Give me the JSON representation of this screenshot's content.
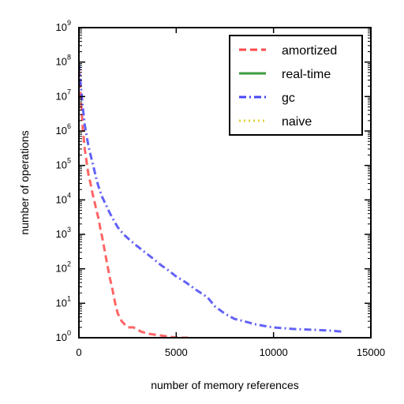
{
  "chart_data": {
    "type": "line",
    "xlabel": "number of memory references",
    "ylabel": "number of operations",
    "xlim": [
      0,
      15000
    ],
    "ylim": [
      1,
      1000000000
    ],
    "yscale": "log",
    "x_ticks": [
      0,
      5000,
      10000,
      15000
    ],
    "x_tick_labels": [
      "0",
      "5000",
      "10000",
      "15000"
    ],
    "y_ticks": [
      1,
      10,
      100,
      1000,
      10000,
      100000,
      1000000,
      10000000,
      100000000,
      1000000000
    ],
    "y_tick_labels": [
      {
        "base": "10",
        "exp": "0"
      },
      {
        "base": "10",
        "exp": "1"
      },
      {
        "base": "10",
        "exp": "2"
      },
      {
        "base": "10",
        "exp": "3"
      },
      {
        "base": "10",
        "exp": "4"
      },
      {
        "base": "10",
        "exp": "5"
      },
      {
        "base": "10",
        "exp": "6"
      },
      {
        "base": "10",
        "exp": "7"
      },
      {
        "base": "10",
        "exp": "8"
      },
      {
        "base": "10",
        "exp": "9"
      }
    ],
    "legend_position": "top-right",
    "series": [
      {
        "name": "amortized",
        "color": "#ff4a4a",
        "dash": "9,5",
        "points": [
          [
            0,
            60000000
          ],
          [
            100,
            8000000
          ],
          [
            200,
            1200000
          ],
          [
            300,
            300000
          ],
          [
            400,
            120000
          ],
          [
            500,
            50000
          ],
          [
            600,
            30000
          ],
          [
            700,
            15000
          ],
          [
            800,
            9000
          ],
          [
            900,
            5000
          ],
          [
            1000,
            3000
          ],
          [
            1100,
            1500
          ],
          [
            1200,
            800
          ],
          [
            1300,
            400
          ],
          [
            1400,
            200
          ],
          [
            1500,
            100
          ],
          [
            1600,
            50
          ],
          [
            1700,
            30
          ],
          [
            1800,
            15
          ],
          [
            1900,
            8
          ],
          [
            2000,
            5
          ],
          [
            2200,
            3
          ],
          [
            2500,
            2
          ],
          [
            2800,
            2
          ],
          [
            3200,
            1.5
          ],
          [
            3600,
            1.3
          ],
          [
            4000,
            1.2
          ],
          [
            4500,
            1.1
          ],
          [
            5000,
            1
          ],
          [
            5600,
            1
          ]
        ]
      },
      {
        "name": "real-time",
        "color": "#3e9c3e",
        "dash": "",
        "points": []
      },
      {
        "name": "gc",
        "color": "#4646f5",
        "dash": "9,4,2,4",
        "points": [
          [
            0,
            90000000
          ],
          [
            100,
            20000000
          ],
          [
            200,
            5000000
          ],
          [
            300,
            1500000
          ],
          [
            400,
            700000
          ],
          [
            500,
            350000
          ],
          [
            600,
            200000
          ],
          [
            700,
            120000
          ],
          [
            800,
            70000
          ],
          [
            900,
            40000
          ],
          [
            1000,
            25000
          ],
          [
            1200,
            12000
          ],
          [
            1400,
            7000
          ],
          [
            1600,
            4000
          ],
          [
            1800,
            2500
          ],
          [
            2000,
            1600
          ],
          [
            2300,
            1000
          ],
          [
            2600,
            700
          ],
          [
            3000,
            450
          ],
          [
            3400,
            300
          ],
          [
            3800,
            200
          ],
          [
            4200,
            130
          ],
          [
            4600,
            90
          ],
          [
            5000,
            60
          ],
          [
            5500,
            40
          ],
          [
            6000,
            25
          ],
          [
            6600,
            15
          ],
          [
            7000,
            8
          ],
          [
            7500,
            5
          ],
          [
            8000,
            3.5
          ],
          [
            8500,
            3
          ],
          [
            9000,
            2.5
          ],
          [
            9500,
            2.2
          ],
          [
            10000,
            2
          ],
          [
            11000,
            1.8
          ],
          [
            12000,
            1.7
          ],
          [
            13000,
            1.6
          ],
          [
            13500,
            1.5
          ]
        ]
      },
      {
        "name": "naive",
        "color": "#e0cf3a",
        "dash": "2,4",
        "points": []
      }
    ]
  }
}
